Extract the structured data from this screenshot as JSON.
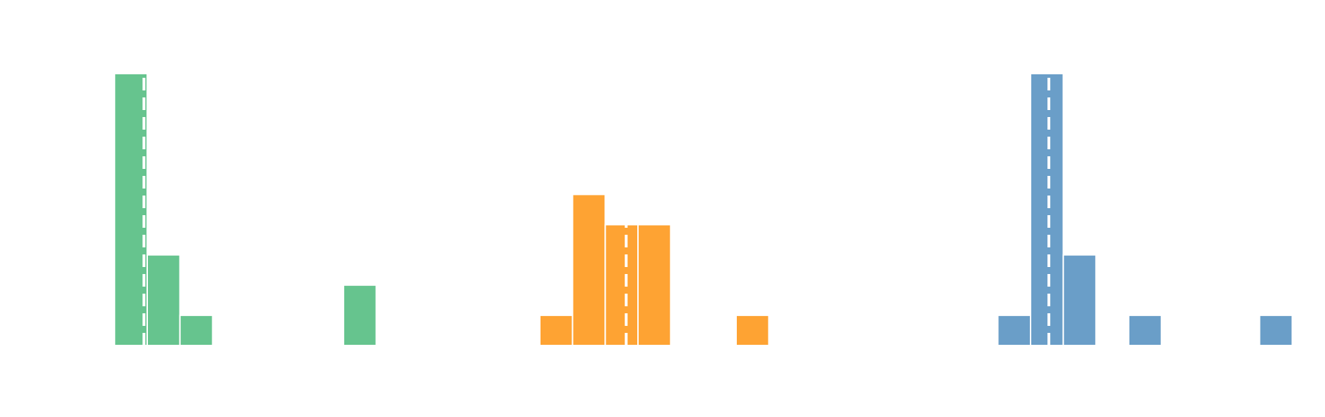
{
  "chart_data": {
    "type": "histogram",
    "xlim": [
      -3.5,
      37
    ],
    "ylim": [
      0,
      9
    ],
    "grid": false,
    "series": [
      {
        "color": "#66c48e",
        "bins": [
          0,
          1,
          2,
          3,
          4,
          5,
          6,
          7,
          8
        ],
        "values": [
          9,
          3,
          1,
          0,
          0,
          0,
          0,
          2
        ],
        "marker": 0.9
      },
      {
        "color": "#fea333",
        "bins": [
          13,
          14,
          15,
          16,
          17,
          18,
          19,
          20
        ],
        "values": [
          1,
          5,
          4,
          4,
          0,
          0,
          1
        ],
        "marker": 15.64
      },
      {
        "color": "#6a9ec8",
        "bins": [
          27,
          28,
          29,
          30,
          31,
          32,
          33,
          34,
          35,
          36
        ],
        "values": [
          1,
          9,
          3,
          0,
          1,
          0,
          0,
          0,
          1
        ],
        "marker": 28.56
      }
    ]
  }
}
